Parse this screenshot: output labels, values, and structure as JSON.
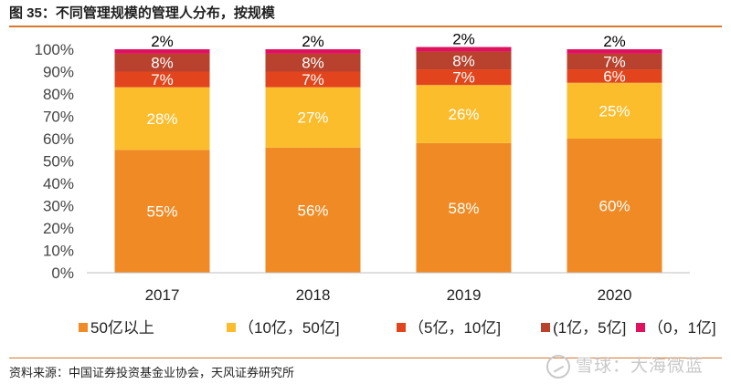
{
  "header": {
    "title": "图 35：不同管理规模的管理人分布，按规模"
  },
  "footer": {
    "source": "资料来源：中国证券投资基金业协会，天风证券研究所",
    "watermark": "雪球：大海微蓝"
  },
  "chart_data": {
    "type": "bar",
    "stacked": true,
    "categories": [
      "2017",
      "2018",
      "2019",
      "2020"
    ],
    "ylim": [
      0,
      100
    ],
    "yticks": [
      0,
      10,
      20,
      30,
      40,
      50,
      60,
      70,
      80,
      90,
      100
    ],
    "ytick_suffix": "%",
    "legend_position": "bottom",
    "series": [
      {
        "name": "50亿以上",
        "color": "#f08a24",
        "label_color": "#ffffff",
        "values": [
          55,
          56,
          58,
          60
        ]
      },
      {
        "name": "（10亿，50亿]",
        "color": "#fbbd2c",
        "label_color": "#ffffff",
        "values": [
          28,
          27,
          26,
          25
        ]
      },
      {
        "name": "（5亿，10亿]",
        "color": "#e2451d",
        "label_color": "#ffffff",
        "values": [
          7,
          7,
          7,
          6
        ]
      },
      {
        "name": "(1亿，5亿]",
        "color": "#b8422e",
        "label_color": "#ffffff",
        "values": [
          8,
          8,
          8,
          7
        ]
      },
      {
        "name": "（0，1亿]",
        "color": "#e0115f",
        "label_color": "#000000",
        "values": [
          2,
          2,
          2,
          2
        ]
      }
    ]
  }
}
